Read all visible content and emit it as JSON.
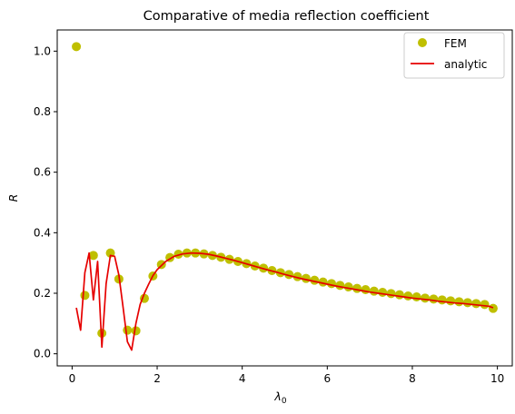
{
  "chart_data": {
    "type": "line",
    "title": "Comparative of media reflection coefficient",
    "xlabel": "λ",
    "xlabel_sub": "0",
    "ylabel": "R",
    "xlim": [
      -0.35,
      10.35
    ],
    "ylim": [
      -0.04,
      1.07
    ],
    "xticks": [
      0,
      2,
      4,
      6,
      8,
      10
    ],
    "yticks": [
      0.0,
      0.2,
      0.4,
      0.6,
      0.8,
      1.0
    ],
    "xtick_labels": [
      "0",
      "2",
      "4",
      "6",
      "8",
      "10"
    ],
    "ytick_labels": [
      "0.0",
      "0.2",
      "0.4",
      "0.6",
      "0.8",
      "1.0"
    ],
    "grid": false,
    "legend_position": "top-right",
    "series": [
      {
        "name": "FEM",
        "style": "markers",
        "color": "#bfbf00",
        "x": [
          0.1,
          0.3,
          0.5,
          0.7,
          0.9,
          1.1,
          1.3,
          1.5,
          1.7,
          1.9,
          2.1,
          2.3,
          2.5,
          2.7,
          2.9,
          3.1,
          3.3,
          3.5,
          3.7,
          3.9,
          4.1,
          4.3,
          4.5,
          4.7,
          4.9,
          5.1,
          5.3,
          5.5,
          5.7,
          5.9,
          6.1,
          6.3,
          6.5,
          6.7,
          6.9,
          7.1,
          7.3,
          7.5,
          7.7,
          7.9,
          8.1,
          8.3,
          8.5,
          8.7,
          8.9,
          9.1,
          9.3,
          9.5,
          9.7,
          9.9
        ],
        "y": [
          1.015,
          0.193,
          0.325,
          0.068,
          0.333,
          0.247,
          0.078,
          0.076,
          0.183,
          0.257,
          0.295,
          0.318,
          0.329,
          0.333,
          0.333,
          0.33,
          0.325,
          0.319,
          0.312,
          0.305,
          0.298,
          0.29,
          0.283,
          0.275,
          0.268,
          0.262,
          0.255,
          0.249,
          0.243,
          0.237,
          0.232,
          0.226,
          0.221,
          0.216,
          0.212,
          0.207,
          0.203,
          0.199,
          0.195,
          0.191,
          0.188,
          0.184,
          0.181,
          0.178,
          0.175,
          0.172,
          0.169,
          0.166,
          0.163,
          0.15
        ]
      },
      {
        "name": "analytic",
        "style": "line",
        "color": "#e60000",
        "x": [
          0.1,
          0.2,
          0.3,
          0.4,
          0.5,
          0.6,
          0.7,
          0.8,
          0.9,
          1.0,
          1.1,
          1.2,
          1.3,
          1.4,
          1.5,
          1.6,
          1.7,
          1.8,
          1.9,
          2.0,
          2.2,
          2.4,
          2.6,
          2.8,
          3.0,
          3.2,
          3.4,
          3.6,
          3.8,
          4.0,
          4.2,
          4.4,
          4.6,
          4.8,
          5.0,
          5.2,
          5.4,
          5.6,
          5.8,
          6.0,
          6.2,
          6.4,
          6.6,
          6.8,
          7.0,
          7.2,
          7.4,
          7.6,
          7.8,
          8.0,
          8.2,
          8.4,
          8.6,
          8.8,
          9.0,
          9.2,
          9.4,
          9.6,
          9.8,
          9.9
        ],
        "y": [
          0.152,
          0.078,
          0.268,
          0.333,
          0.178,
          0.305,
          0.022,
          0.232,
          0.325,
          0.322,
          0.26,
          0.152,
          0.04,
          0.012,
          0.1,
          0.163,
          0.2,
          0.23,
          0.258,
          0.278,
          0.305,
          0.322,
          0.33,
          0.333,
          0.332,
          0.329,
          0.323,
          0.316,
          0.309,
          0.301,
          0.293,
          0.285,
          0.277,
          0.27,
          0.262,
          0.255,
          0.248,
          0.242,
          0.236,
          0.23,
          0.224,
          0.219,
          0.214,
          0.209,
          0.204,
          0.2,
          0.196,
          0.192,
          0.188,
          0.184,
          0.181,
          0.178,
          0.174,
          0.171,
          0.168,
          0.166,
          0.163,
          0.16,
          0.157,
          0.152
        ]
      }
    ]
  }
}
